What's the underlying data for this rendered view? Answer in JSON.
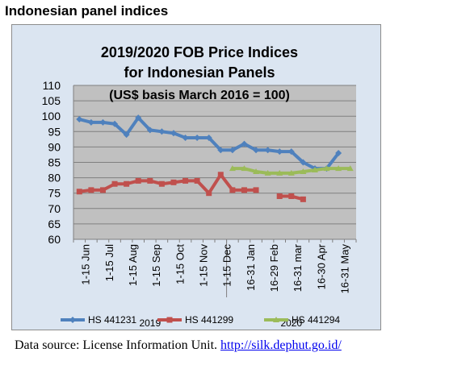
{
  "page": {
    "heading": "Indonesian panel indices",
    "source_prefix": "Data source: License Information Unit.",
    "source_link": "http://silk.dephut.go.id/"
  },
  "chart_data": {
    "type": "line",
    "title_lines": [
      "2019/2020 FOB Price Indices",
      "for Indonesian Panels",
      "(US$ basis March 2016 = 100)"
    ],
    "ylim": [
      60,
      110
    ],
    "yticks": [
      60,
      65,
      70,
      75,
      80,
      85,
      90,
      95,
      100,
      105,
      110
    ],
    "grid": true,
    "legend_position": "bottom",
    "x_tick_labels": [
      "1-15 Jun",
      "1-15 Jul",
      "1-15 Aug",
      "1-15 Sep",
      "1-15 Oct",
      "1-15 Nov",
      "1-15 Dec",
      "16-31 Jan",
      "16-29 Feb",
      "16-31 mar",
      "16-30 Apr",
      "16-31 May"
    ],
    "year_labels": [
      "2019",
      "2020"
    ],
    "series": [
      {
        "name": "HS 441231",
        "color": "#4f81bd",
        "marker": "diamond",
        "values": [
          99,
          98,
          98,
          97.5,
          94,
          99.5,
          95.5,
          95,
          94.5,
          93,
          93,
          93,
          89,
          89,
          91,
          89,
          89,
          88.5,
          88.5,
          85,
          83,
          83,
          88
        ]
      },
      {
        "name": "HS 441299",
        "color": "#c0504d",
        "marker": "square",
        "values": [
          75.5,
          76,
          76,
          78,
          78,
          79,
          79,
          78,
          78.5,
          79,
          79,
          75,
          81,
          76,
          76,
          76,
          null,
          74,
          74,
          73
        ]
      },
      {
        "name": "HS 441294",
        "color": "#9bbb59",
        "marker": "triangle",
        "values": [
          null,
          null,
          null,
          null,
          null,
          null,
          null,
          null,
          null,
          null,
          null,
          null,
          null,
          83,
          83,
          82,
          81.5,
          81.5,
          81.5,
          82,
          82.5,
          83,
          83,
          83
        ]
      }
    ]
  }
}
